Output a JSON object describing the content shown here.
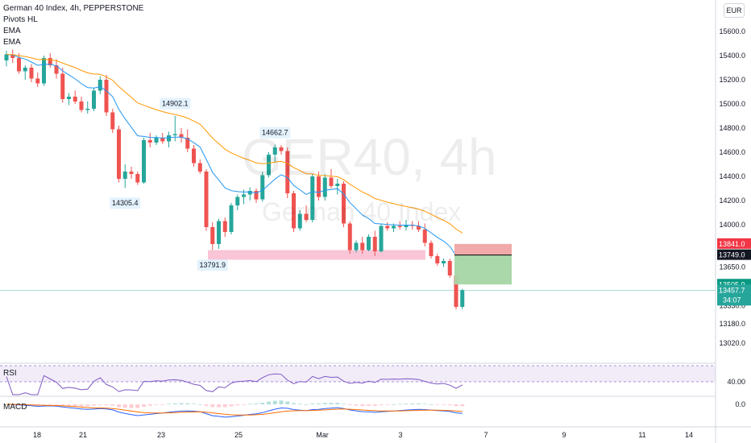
{
  "legend": {
    "title": "German 40 Index, 4h, PEPPERSTONE",
    "indicators": [
      "Pivots HL",
      "EMA",
      "EMA"
    ]
  },
  "watermark": {
    "symbol": "GER40, 4h",
    "description": "German 40 Index"
  },
  "currency": "EUR",
  "panes": {
    "rsi_label": "RSI",
    "macd_label": "MACD"
  },
  "colors": {
    "up": "#26a69a",
    "down": "#ef5350",
    "ema_fast": "#2196f3",
    "ema_slow": "#ff9800",
    "rsi": "#7e57c2",
    "macd": "#2962ff",
    "signal": "#ff6d00",
    "support_zone": "#f8bbd0",
    "stop_zone": "#ef9a9a",
    "target_zone": "#a5d6a7"
  },
  "chart_data": {
    "type": "candlestick",
    "price_axis": [
      "15600.0",
      "15400.0",
      "15200.0",
      "15000.0",
      "14800.0",
      "14600.0",
      "14400.0",
      "14200.0",
      "14000.0",
      "13650.0",
      "13330.0",
      "13180.0",
      "13020.0"
    ],
    "time_axis": [
      "18",
      "21",
      "23",
      "25",
      "Mar",
      "3",
      "7",
      "9",
      "11",
      "14"
    ],
    "pivot_labels": [
      {
        "label": "14902.1",
        "type": "high"
      },
      {
        "label": "14662.7",
        "type": "high"
      },
      {
        "label": "14305.4",
        "type": "low"
      },
      {
        "label": "13791.9",
        "type": "low"
      }
    ],
    "price_badges": [
      {
        "label": "13841.0",
        "kind": "stop"
      },
      {
        "label": "13749.0",
        "kind": "entry"
      },
      {
        "label": "13505.0",
        "kind": "target"
      },
      {
        "label": "13457.7",
        "countdown": "34:07",
        "kind": "last"
      }
    ],
    "rsi_axis": "40.00",
    "macd_axis": "0.0",
    "candles": [
      {
        "o": 15360,
        "h": 15440,
        "l": 15310,
        "c": 15410
      },
      {
        "o": 15410,
        "h": 15450,
        "l": 15340,
        "c": 15380
      },
      {
        "o": 15380,
        "h": 15420,
        "l": 15250,
        "c": 15270
      },
      {
        "o": 15270,
        "h": 15320,
        "l": 15200,
        "c": 15300
      },
      {
        "o": 15300,
        "h": 15330,
        "l": 15180,
        "c": 15210
      },
      {
        "o": 15210,
        "h": 15260,
        "l": 15140,
        "c": 15170
      },
      {
        "o": 15170,
        "h": 15400,
        "l": 15150,
        "c": 15380
      },
      {
        "o": 15380,
        "h": 15420,
        "l": 15300,
        "c": 15320
      },
      {
        "o": 15320,
        "h": 15370,
        "l": 15210,
        "c": 15250
      },
      {
        "o": 15250,
        "h": 15300,
        "l": 15010,
        "c": 15040
      },
      {
        "o": 15040,
        "h": 15090,
        "l": 14990,
        "c": 15060
      },
      {
        "o": 15060,
        "h": 15110,
        "l": 15000,
        "c": 15020
      },
      {
        "o": 15020,
        "h": 15060,
        "l": 14930,
        "c": 14950
      },
      {
        "o": 14950,
        "h": 15020,
        "l": 14920,
        "c": 14960
      },
      {
        "o": 14960,
        "h": 15130,
        "l": 14940,
        "c": 15110
      },
      {
        "o": 15110,
        "h": 15230,
        "l": 15080,
        "c": 15200
      },
      {
        "o": 15200,
        "h": 15240,
        "l": 14900,
        "c": 14930
      },
      {
        "o": 14930,
        "h": 14960,
        "l": 14760,
        "c": 14790
      },
      {
        "o": 14790,
        "h": 14820,
        "l": 14350,
        "c": 14380
      },
      {
        "o": 14380,
        "h": 14500,
        "l": 14305,
        "c": 14440
      },
      {
        "o": 14440,
        "h": 14480,
        "l": 14380,
        "c": 14420
      },
      {
        "o": 14420,
        "h": 14440,
        "l": 14330,
        "c": 14350
      },
      {
        "o": 14350,
        "h": 14720,
        "l": 14340,
        "c": 14700
      },
      {
        "o": 14700,
        "h": 14760,
        "l": 14640,
        "c": 14680
      },
      {
        "o": 14680,
        "h": 14740,
        "l": 14660,
        "c": 14720
      },
      {
        "o": 14720,
        "h": 14760,
        "l": 14670,
        "c": 14690
      },
      {
        "o": 14690,
        "h": 14770,
        "l": 14640,
        "c": 14740
      },
      {
        "o": 14740,
        "h": 14900,
        "l": 14690,
        "c": 14750
      },
      {
        "o": 14750,
        "h": 14800,
        "l": 14680,
        "c": 14720
      },
      {
        "o": 14720,
        "h": 14790,
        "l": 14600,
        "c": 14630
      },
      {
        "o": 14630,
        "h": 14660,
        "l": 14480,
        "c": 14510
      },
      {
        "o": 14510,
        "h": 14540,
        "l": 14420,
        "c": 14440
      },
      {
        "o": 14440,
        "h": 14460,
        "l": 13950,
        "c": 13980
      },
      {
        "o": 13980,
        "h": 14020,
        "l": 13792,
        "c": 13840
      },
      {
        "o": 13840,
        "h": 14050,
        "l": 13800,
        "c": 14030
      },
      {
        "o": 14030,
        "h": 14060,
        "l": 13900,
        "c": 13940
      },
      {
        "o": 13940,
        "h": 14180,
        "l": 13920,
        "c": 14160
      },
      {
        "o": 14160,
        "h": 14250,
        "l": 14120,
        "c": 14230
      },
      {
        "o": 14230,
        "h": 14290,
        "l": 14170,
        "c": 14250
      },
      {
        "o": 14250,
        "h": 14310,
        "l": 14200,
        "c": 14280
      },
      {
        "o": 14280,
        "h": 14300,
        "l": 14180,
        "c": 14210
      },
      {
        "o": 14210,
        "h": 14440,
        "l": 14190,
        "c": 14410
      },
      {
        "o": 14410,
        "h": 14600,
        "l": 14390,
        "c": 14580
      },
      {
        "o": 14580,
        "h": 14663,
        "l": 14520,
        "c": 14640
      },
      {
        "o": 14640,
        "h": 14660,
        "l": 14580,
        "c": 14610
      },
      {
        "o": 14610,
        "h": 14640,
        "l": 14220,
        "c": 14260
      },
      {
        "o": 14260,
        "h": 14280,
        "l": 13940,
        "c": 13970
      },
      {
        "o": 13970,
        "h": 14120,
        "l": 13950,
        "c": 14090
      },
      {
        "o": 14090,
        "h": 14160,
        "l": 14020,
        "c": 14040
      },
      {
        "o": 14040,
        "h": 14420,
        "l": 14020,
        "c": 14400
      },
      {
        "o": 14400,
        "h": 14440,
        "l": 14200,
        "c": 14230
      },
      {
        "o": 14230,
        "h": 14420,
        "l": 14200,
        "c": 14390
      },
      {
        "o": 14390,
        "h": 14460,
        "l": 14300,
        "c": 14320
      },
      {
        "o": 14320,
        "h": 14380,
        "l": 14250,
        "c": 14340
      },
      {
        "o": 14340,
        "h": 14360,
        "l": 13980,
        "c": 14010
      },
      {
        "o": 14010,
        "h": 14030,
        "l": 13760,
        "c": 13790
      },
      {
        "o": 13790,
        "h": 13870,
        "l": 13770,
        "c": 13850
      },
      {
        "o": 13850,
        "h": 13900,
        "l": 13760,
        "c": 13790
      },
      {
        "o": 13790,
        "h": 13920,
        "l": 13780,
        "c": 13900
      },
      {
        "o": 13900,
        "h": 13950,
        "l": 13740,
        "c": 13780
      },
      {
        "o": 13780,
        "h": 14010,
        "l": 13770,
        "c": 13990
      },
      {
        "o": 13990,
        "h": 14020,
        "l": 13950,
        "c": 13970
      },
      {
        "o": 13970,
        "h": 14010,
        "l": 13940,
        "c": 13990
      },
      {
        "o": 13990,
        "h": 14030,
        "l": 13960,
        "c": 13980
      },
      {
        "o": 13980,
        "h": 14040,
        "l": 13950,
        "c": 14000
      },
      {
        "o": 14000,
        "h": 14030,
        "l": 13960,
        "c": 13990
      },
      {
        "o": 13990,
        "h": 14030,
        "l": 13940,
        "c": 13960
      },
      {
        "o": 13960,
        "h": 14010,
        "l": 13820,
        "c": 13850
      },
      {
        "o": 13850,
        "h": 13870,
        "l": 13720,
        "c": 13740
      },
      {
        "o": 13740,
        "h": 13760,
        "l": 13660,
        "c": 13680
      },
      {
        "o": 13680,
        "h": 13720,
        "l": 13650,
        "c": 13700
      },
      {
        "o": 13700,
        "h": 13720,
        "l": 13560,
        "c": 13580
      },
      {
        "o": 13580,
        "h": 13600,
        "l": 13300,
        "c": 13320
      },
      {
        "o": 13320,
        "h": 13470,
        "l": 13300,
        "c": 13457.7
      }
    ]
  }
}
